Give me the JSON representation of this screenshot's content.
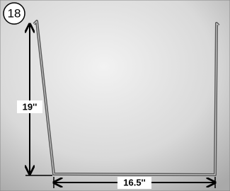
{
  "figure": {
    "step_number": "18",
    "height_label": "19''",
    "width_label": "16.5''"
  }
}
